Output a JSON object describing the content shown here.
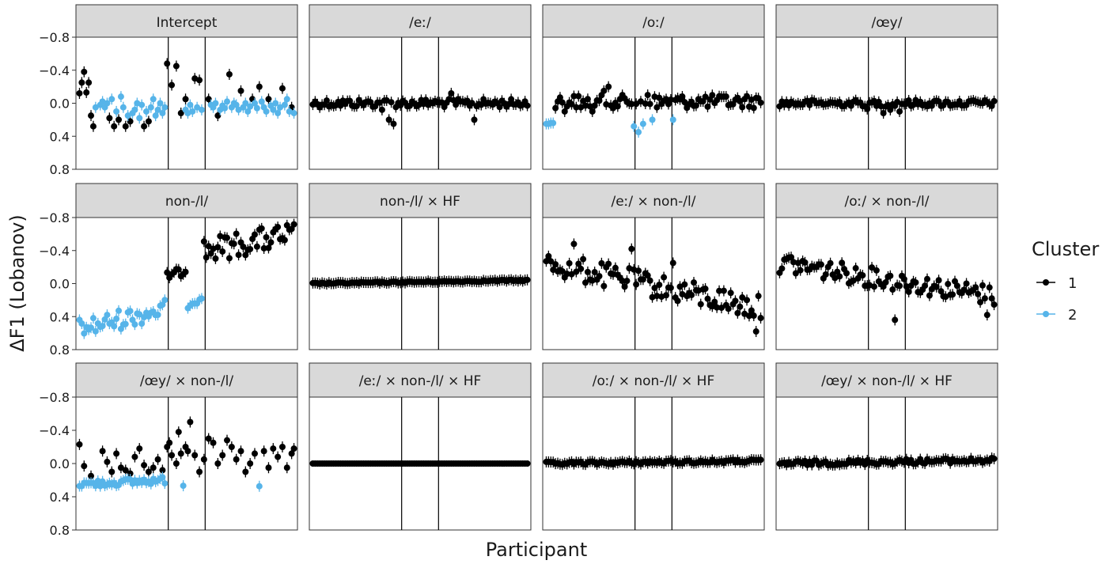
{
  "chart_data": {
    "type": "scatter",
    "xlabel": "Participant",
    "ylabel": "ΔF1 (Lobanov)",
    "yaxis_reversed": true,
    "ylim": [
      0.8,
      -0.8
    ],
    "yticks": [
      -0.8,
      -0.4,
      0.0,
      0.4,
      0.8
    ],
    "ytick_labels": [
      "−0.8",
      "−0.4",
      "0.0",
      "0.4",
      "0.8"
    ],
    "participants": 94,
    "group_boundaries": [
      38.5,
      54.5
    ],
    "grid": false,
    "error_bars": true,
    "legend": {
      "title": "Cluster",
      "placement": "right",
      "entries": [
        {
          "label": "1",
          "color": "#000000"
        },
        {
          "label": "2",
          "color": "#56B4E9"
        }
      ]
    },
    "facets": [
      {
        "title": "Intercept",
        "cluster2_ranges": [
          [
            7,
            38
          ],
          [
            46,
            54
          ],
          [
            56,
            93
          ]
        ],
        "c1": [
          [
            0,
            -0.12
          ],
          [
            1,
            -0.25
          ],
          [
            2,
            -0.38
          ],
          [
            3,
            -0.13
          ],
          [
            4,
            -0.25
          ],
          [
            5,
            0.15
          ],
          [
            6,
            0.28
          ],
          [
            13,
            0.18
          ],
          [
            15,
            0.28
          ],
          [
            17,
            0.2
          ],
          [
            20,
            0.28
          ],
          [
            22,
            0.22
          ],
          [
            28,
            0.28
          ],
          [
            30,
            0.22
          ],
          [
            38,
            -0.48
          ],
          [
            40,
            -0.22
          ],
          [
            42,
            -0.45
          ],
          [
            44,
            0.12
          ],
          [
            46,
            -0.05
          ],
          [
            50,
            -0.3
          ],
          [
            52,
            -0.28
          ],
          [
            56,
            -0.05
          ],
          [
            60,
            0.15
          ],
          [
            65,
            -0.35
          ],
          [
            70,
            -0.15
          ],
          [
            75,
            -0.05
          ],
          [
            78,
            -0.2
          ],
          [
            82,
            -0.05
          ],
          [
            88,
            -0.18
          ],
          [
            92,
            0.05
          ]
        ],
        "c2": [
          [
            7,
            0.05
          ],
          [
            9,
            0.02
          ],
          [
            10,
            -0.02
          ],
          [
            11,
            0.05
          ],
          [
            12,
            0.0
          ],
          [
            14,
            -0.05
          ],
          [
            16,
            0.1
          ],
          [
            18,
            -0.08
          ],
          [
            19,
            0.05
          ],
          [
            21,
            0.15
          ],
          [
            23,
            0.12
          ],
          [
            24,
            0.08
          ],
          [
            25,
            0.0
          ],
          [
            26,
            0.18
          ],
          [
            27,
            0.02
          ],
          [
            29,
            0.1
          ],
          [
            31,
            0.05
          ],
          [
            32,
            -0.05
          ],
          [
            33,
            0.15
          ],
          [
            34,
            0.08
          ],
          [
            35,
            0.0
          ],
          [
            36,
            0.12
          ],
          [
            37,
            0.05
          ],
          [
            46,
            0.08
          ],
          [
            47,
            0.12
          ],
          [
            48,
            0.02
          ],
          [
            49,
            0.1
          ],
          [
            51,
            0.05
          ],
          [
            53,
            0.08
          ],
          [
            57,
            0.02
          ],
          [
            58,
            0.05
          ],
          [
            59,
            0.0
          ],
          [
            61,
            0.08
          ],
          [
            62,
            0.03
          ],
          [
            63,
            0.06
          ],
          [
            64,
            -0.02
          ],
          [
            66,
            0.05
          ],
          [
            67,
            0.0
          ],
          [
            68,
            0.02
          ],
          [
            69,
            0.08
          ],
          [
            71,
            0.05
          ],
          [
            72,
            0.0
          ],
          [
            73,
            0.1
          ],
          [
            74,
            0.04
          ],
          [
            76,
            0.0
          ],
          [
            77,
            0.06
          ],
          [
            79,
            -0.02
          ],
          [
            80,
            0.05
          ],
          [
            81,
            0.1
          ],
          [
            83,
            0.03
          ],
          [
            84,
            0.08
          ],
          [
            85,
            0.0
          ],
          [
            86,
            0.12
          ],
          [
            87,
            0.05
          ],
          [
            89,
            0.02
          ],
          [
            90,
            -0.05
          ],
          [
            91,
            0.1
          ],
          [
            93,
            0.12
          ]
        ]
      },
      {
        "title": "/eː/",
        "base": 0.0,
        "trend": 0.0,
        "spread": 0.05,
        "outliers": [
          [
            30,
            0.08
          ],
          [
            33,
            0.2
          ],
          [
            35,
            0.25
          ],
          [
            52,
            0.0
          ],
          [
            60,
            -0.12
          ],
          [
            70,
            0.2
          ]
        ]
      },
      {
        "title": "/oː/",
        "base": -0.02,
        "trend": 0.0,
        "spread": 0.08,
        "c2": [
          [
            0,
            0.25
          ],
          [
            1,
            0.25
          ],
          [
            2,
            0.24
          ],
          [
            3,
            0.24
          ],
          [
            38,
            0.28
          ],
          [
            40,
            0.35
          ],
          [
            42,
            0.25
          ],
          [
            46,
            0.2
          ],
          [
            55,
            0.2
          ]
        ],
        "outliers": [
          [
            8,
            0.1
          ],
          [
            15,
            0.05
          ],
          [
            20,
            0.1
          ],
          [
            25,
            -0.15
          ],
          [
            27,
            -0.2
          ],
          [
            44,
            -0.1
          ],
          [
            48,
            0.05
          ]
        ]
      },
      {
        "title": "/œy/",
        "base": 0.0,
        "trend": 0.0,
        "spread": 0.04,
        "outliers": [
          [
            45,
            0.12
          ],
          [
            48,
            0.08
          ],
          [
            52,
            0.1
          ],
          [
            38,
            0.07
          ]
        ]
      },
      {
        "title": "non-/l/",
        "c2_start": 0,
        "c2_end": 54,
        "segments": [
          {
            "from": 0,
            "to": 38,
            "cluster": 2,
            "start": 0.55,
            "end": 0.3,
            "spread": 0.12
          },
          {
            "from": 38,
            "to": 54,
            "cluster": 1,
            "start": -0.1,
            "end": -0.2,
            "spread": 0.05
          },
          {
            "from": 47,
            "to": 54,
            "cluster": 2,
            "start": 0.25,
            "end": 0.15,
            "spread": 0.05
          },
          {
            "from": 54,
            "to": 94,
            "cluster": 1,
            "start": -0.4,
            "end": -0.6,
            "spread": 0.15
          }
        ]
      },
      {
        "title": "non-/l/ × HF",
        "base": 0.0,
        "trend": -0.04,
        "spread": 0.01
      },
      {
        "title": "/eː/ × non-/l/",
        "base": -0.25,
        "trend": 0.55,
        "spread": 0.15,
        "outliers": [
          [
            12,
            -0.48
          ],
          [
            37,
            -0.42
          ],
          [
            55,
            -0.25
          ],
          [
            91,
            0.58
          ]
        ]
      },
      {
        "title": "/oː/ × non-/l/",
        "base": -0.25,
        "trend": 0.4,
        "spread": 0.12,
        "outliers": [
          [
            3,
            -0.3
          ],
          [
            5,
            -0.32
          ],
          [
            90,
            0.38
          ],
          [
            50,
            0.44
          ]
        ]
      },
      {
        "title": "/œy/ × non-/l/",
        "c2_ranges": [
          [
            0,
            38
          ],
          [
            45,
            46
          ],
          [
            78,
            79
          ]
        ],
        "c2_base": 0.25,
        "c2_trend": -0.05,
        "c2_spread": 0.04,
        "c1": [
          [
            0,
            -0.23
          ],
          [
            2,
            0.03
          ],
          [
            5,
            0.15
          ],
          [
            10,
            -0.15
          ],
          [
            12,
            -0.02
          ],
          [
            14,
            0.1
          ],
          [
            16,
            -0.12
          ],
          [
            18,
            0.05
          ],
          [
            20,
            0.08
          ],
          [
            22,
            0.12
          ],
          [
            24,
            -0.08
          ],
          [
            26,
            -0.18
          ],
          [
            28,
            0.02
          ],
          [
            30,
            0.1
          ],
          [
            32,
            0.05
          ],
          [
            34,
            -0.05
          ],
          [
            36,
            0.08
          ],
          [
            38,
            -0.2
          ],
          [
            39,
            -0.25
          ],
          [
            40,
            -0.1
          ],
          [
            42,
            0.0
          ],
          [
            43,
            -0.38
          ],
          [
            44,
            -0.12
          ],
          [
            46,
            -0.2
          ],
          [
            47,
            -0.15
          ],
          [
            48,
            -0.5
          ],
          [
            50,
            -0.1
          ],
          [
            52,
            0.1
          ],
          [
            54,
            -0.05
          ],
          [
            56,
            -0.3
          ],
          [
            58,
            -0.25
          ],
          [
            60,
            0.0
          ],
          [
            62,
            -0.1
          ],
          [
            64,
            -0.28
          ],
          [
            66,
            -0.2
          ],
          [
            68,
            -0.05
          ],
          [
            70,
            -0.15
          ],
          [
            72,
            0.1
          ],
          [
            74,
            0.0
          ],
          [
            76,
            -0.12
          ],
          [
            80,
            -0.15
          ],
          [
            82,
            0.05
          ],
          [
            84,
            -0.18
          ],
          [
            86,
            -0.08
          ],
          [
            88,
            -0.2
          ],
          [
            90,
            0.05
          ],
          [
            92,
            -0.12
          ],
          [
            93,
            -0.18
          ]
        ]
      },
      {
        "title": "/eː/ × non-/l/ × HF",
        "base": 0.0,
        "trend": 0.0,
        "spread": 0.0
      },
      {
        "title": "/oː/ × non-/l/ × HF",
        "base": 0.0,
        "trend": -0.03,
        "spread": 0.02
      },
      {
        "title": "/œy/ × non-/l/ × HF",
        "base": 0.0,
        "trend": -0.04,
        "spread": 0.03
      }
    ]
  }
}
